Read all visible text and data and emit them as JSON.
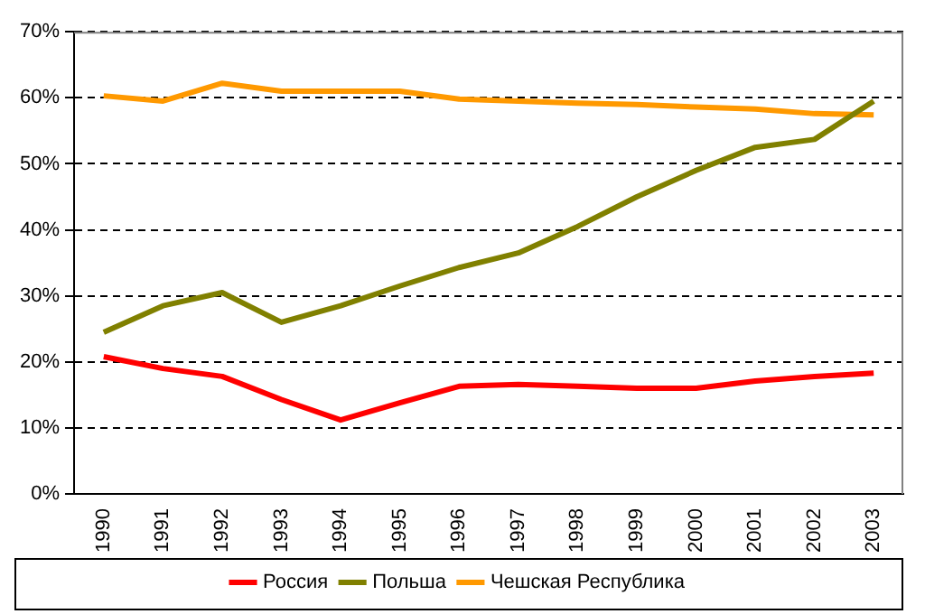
{
  "chart_data": {
    "type": "line",
    "categories": [
      "1990",
      "1991",
      "1992",
      "1993",
      "1994",
      "1995",
      "1996",
      "1997",
      "1998",
      "1999",
      "2000",
      "2001",
      "2002",
      "2003"
    ],
    "series": [
      {
        "name": "Россия",
        "color": "#ff0000",
        "values": [
          20.8,
          19,
          17.8,
          14.3,
          11.2,
          13.8,
          16.3,
          16.6,
          16.3,
          16,
          16,
          17.1,
          17.8,
          18.3
        ]
      },
      {
        "name": "Польша",
        "color": "#808000",
        "values": [
          24.5,
          28.5,
          30.5,
          26,
          28.5,
          31.5,
          34.3,
          36.5,
          40.5,
          45,
          49,
          52.5,
          53.7,
          59.5
        ]
      },
      {
        "name": "Чешская Республика",
        "color": "#ff9900",
        "values": [
          60.3,
          59.5,
          62.2,
          61,
          61,
          61,
          59.8,
          59.5,
          59.2,
          59,
          58.6,
          58.3,
          57.6,
          57.4
        ]
      }
    ],
    "ylim": [
      0,
      70
    ],
    "yticks": [
      {
        "value": 0,
        "label": "0%"
      },
      {
        "value": 10,
        "label": "10%"
      },
      {
        "value": 20,
        "label": "20%"
      },
      {
        "value": 30,
        "label": "30%"
      },
      {
        "value": 40,
        "label": "40%"
      },
      {
        "value": 50,
        "label": "50%"
      },
      {
        "value": 60,
        "label": "60%"
      },
      {
        "value": 70,
        "label": "70%"
      }
    ],
    "grid": "y",
    "legend": "bottom",
    "marker": "none",
    "line_style": "solid"
  }
}
